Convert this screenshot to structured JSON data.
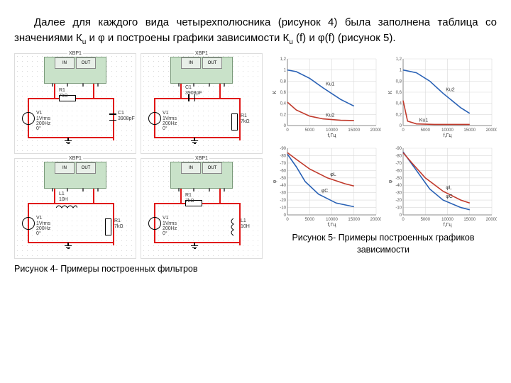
{
  "paragraph": "Далее для каждого вида четырехполюсника (рисунок 4) была заполнена таблица со значениями К",
  "paragraph_sub1": "u",
  "paragraph_mid": " и φ  и построены графики зависимости К",
  "paragraph_sub2": "u",
  "paragraph_end": " (f) и φ(f) (рисунок 5).",
  "caption_circuits": "Рисунок 4- Примеры построенных фильтров",
  "caption_charts": "Рисунок 5- Примеры построенных графиков зависимости",
  "bode_name": "XBP1",
  "bode_in": "IN",
  "bode_out": "OUT",
  "labels": {
    "R1": "R1",
    "R1_val": "7kΩ",
    "C1": "C1",
    "C1_val": "3908pF",
    "L1": "L1",
    "L1_val": "10H",
    "V1": "V1",
    "V1_l2": "1Vrms",
    "V1_l3": "200Hz",
    "V1_l4": "0°"
  },
  "colors": {
    "circuit_wire": "#e01515",
    "bode_fill": "#c9e2c9",
    "blue": "#2961b5",
    "red": "#c0392b",
    "grid": "#d9d9d9",
    "axis": "#888"
  },
  "chart1": {
    "ylim": [
      0,
      1.2
    ],
    "xlim": [
      0,
      20000
    ],
    "yticks": [
      "0",
      "0,2",
      "0,4",
      "0,6",
      "0,8",
      "1",
      "1,2"
    ],
    "xticks": [
      "0",
      "5000",
      "10000",
      "15000",
      "20000"
    ],
    "ylabel": "K",
    "xlabel": "f,Гц",
    "blue_label": "Ku1",
    "red_label": "Ku2",
    "blue": [
      [
        0,
        1.0
      ],
      [
        2000,
        0.97
      ],
      [
        5000,
        0.85
      ],
      [
        8000,
        0.68
      ],
      [
        12000,
        0.47
      ],
      [
        15000,
        0.35
      ]
    ],
    "red": [
      [
        0,
        0.42
      ],
      [
        2000,
        0.28
      ],
      [
        5000,
        0.17
      ],
      [
        8000,
        0.12
      ],
      [
        12000,
        0.095
      ],
      [
        15000,
        0.09
      ]
    ]
  },
  "chart2": {
    "ylim": [
      0,
      1.2
    ],
    "xlim": [
      0,
      20000
    ],
    "yticks": [
      "0",
      "0,2",
      "0,4",
      "0,6",
      "0,8",
      "1",
      "1,2"
    ],
    "xticks": [
      "0",
      "5000",
      "10000",
      "15000",
      "20000"
    ],
    "ylabel": "K",
    "xlabel": "f,Гц",
    "blue_label": "Ku2",
    "red_label": "Ku1",
    "blue": [
      [
        0,
        1.0
      ],
      [
        3000,
        0.95
      ],
      [
        6000,
        0.8
      ],
      [
        9000,
        0.58
      ],
      [
        13000,
        0.32
      ],
      [
        15000,
        0.22
      ]
    ],
    "red": [
      [
        0,
        0.45
      ],
      [
        1000,
        0.08
      ],
      [
        3000,
        0.03
      ],
      [
        7000,
        0.02
      ],
      [
        15000,
        0.02
      ]
    ]
  },
  "chart3": {
    "ylim": [
      -90,
      0
    ],
    "xlim": [
      0,
      20000
    ],
    "yticks": [
      "0",
      "-10",
      "-20",
      "-30",
      "-40",
      "-50",
      "-60",
      "-70",
      "-80",
      "-90"
    ],
    "xticks": [
      "0",
      "5000",
      "10000",
      "15000",
      "20000"
    ],
    "ylabel": "φ",
    "xlabel": "f,Гц",
    "blue_label": "φС",
    "red_label": "φL",
    "blue": [
      [
        0,
        -8
      ],
      [
        2000,
        -25
      ],
      [
        4000,
        -45
      ],
      [
        7000,
        -62
      ],
      [
        11000,
        -74
      ],
      [
        15000,
        -79
      ]
    ],
    "red": [
      [
        0,
        -6
      ],
      [
        2000,
        -15
      ],
      [
        5000,
        -28
      ],
      [
        9000,
        -40
      ],
      [
        13000,
        -48
      ],
      [
        15000,
        -51
      ]
    ]
  },
  "chart4": {
    "ylim": [
      -90,
      0
    ],
    "xlim": [
      0,
      20000
    ],
    "yticks": [
      "0",
      "-10",
      "-20",
      "-30",
      "-40",
      "-50",
      "-60",
      "-70",
      "-80",
      "-90"
    ],
    "xticks": [
      "0",
      "5000",
      "10000",
      "15000",
      "20000"
    ],
    "ylabel": "φ",
    "xlabel": "f,Гц",
    "blue_label": "φС",
    "red_label": "φL",
    "blue": [
      [
        0,
        -5
      ],
      [
        3000,
        -30
      ],
      [
        6000,
        -55
      ],
      [
        9000,
        -70
      ],
      [
        13000,
        -80
      ],
      [
        15000,
        -83
      ]
    ],
    "red": [
      [
        0,
        -6
      ],
      [
        2000,
        -20
      ],
      [
        5000,
        -40
      ],
      [
        9000,
        -58
      ],
      [
        13000,
        -70
      ],
      [
        15000,
        -74
      ]
    ]
  }
}
